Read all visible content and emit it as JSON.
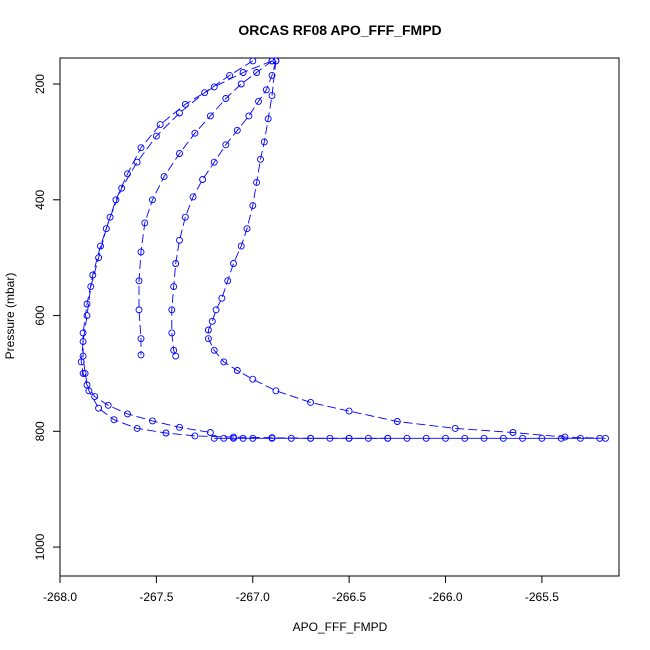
{
  "chart_data": {
    "type": "scatter",
    "title": "ORCAS RF08 APO_FFF_FMPD",
    "xlabel": "APO_FFF_FMPD",
    "ylabel": "Pressure (mbar)",
    "xlim": [
      -268.0,
      -265.1
    ],
    "ylim": [
      1050,
      155
    ],
    "x_ticks": [
      -268.0,
      -267.5,
      -267.0,
      -266.5,
      -266.0,
      -265.5
    ],
    "x_tick_labels": [
      "-268.0",
      "-267.5",
      "-267.0",
      "-266.5",
      "-266.0",
      "-265.5"
    ],
    "y_ticks": [
      200,
      400,
      600,
      800,
      1000
    ],
    "y_tick_labels": [
      "200",
      "400",
      "600",
      "800",
      "1000"
    ],
    "marker": "open-circle",
    "grid": false,
    "color": "#0000ff",
    "series": [
      {
        "x": [
          -266.88,
          -266.9,
          -266.92,
          -266.94,
          -266.96,
          -266.98,
          -267.0,
          -267.03,
          -267.06,
          -267.1,
          -267.13,
          -267.16,
          -267.19,
          -267.21,
          -267.23,
          -267.23,
          -267.2,
          -267.15,
          -267.08,
          -267.0,
          -266.88,
          -266.7,
          -266.5,
          -266.25,
          -265.95,
          -265.65,
          -265.38,
          -265.17
        ],
        "y": [
          160,
          220,
          260,
          300,
          330,
          370,
          410,
          450,
          480,
          510,
          540,
          570,
          590,
          610,
          625,
          640,
          660,
          680,
          695,
          710,
          730,
          750,
          765,
          783,
          795,
          802,
          810,
          812
        ]
      },
      {
        "x": [
          -266.88,
          -266.9,
          -266.93,
          -266.97,
          -267.02,
          -267.08,
          -267.14,
          -267.2,
          -267.26,
          -267.31,
          -267.35,
          -267.38,
          -267.4,
          -267.41,
          -267.42,
          -267.42,
          -267.41,
          -267.4
        ],
        "y": [
          160,
          185,
          210,
          230,
          255,
          280,
          305,
          335,
          365,
          395,
          430,
          470,
          510,
          550,
          590,
          630,
          660,
          670
        ]
      },
      {
        "x": [
          -266.9,
          -266.98,
          -267.06,
          -267.14,
          -267.22,
          -267.3,
          -267.38,
          -267.46,
          -267.52,
          -267.56,
          -267.58,
          -267.59,
          -267.59,
          -267.58,
          -267.58
        ],
        "y": [
          160,
          180,
          200,
          225,
          255,
          285,
          320,
          360,
          400,
          440,
          490,
          540,
          590,
          640,
          668
        ]
      },
      {
        "x": [
          -267.0,
          -267.12,
          -267.25,
          -267.38,
          -267.5,
          -267.6,
          -267.68,
          -267.74,
          -267.79,
          -267.83,
          -267.86,
          -267.88,
          -267.88,
          -267.87,
          -267.85,
          -267.8,
          -267.72,
          -267.6,
          -267.45,
          -267.3,
          -267.1,
          -266.9,
          -266.7,
          -266.5,
          -266.3
        ],
        "y": [
          160,
          185,
          215,
          250,
          290,
          335,
          380,
          430,
          480,
          530,
          580,
          630,
          670,
          700,
          730,
          760,
          780,
          795,
          803,
          808,
          810,
          811,
          812,
          812,
          812
        ]
      },
      {
        "x": [
          -266.9,
          -267.05,
          -267.2,
          -267.35,
          -267.48,
          -267.58,
          -267.65,
          -267.71,
          -267.76,
          -267.8,
          -267.84,
          -267.86,
          -267.88,
          -267.89,
          -267.88,
          -267.86,
          -267.82,
          -267.75,
          -267.65,
          -267.52,
          -267.38,
          -267.22
        ],
        "y": [
          160,
          180,
          205,
          235,
          270,
          310,
          355,
          400,
          450,
          500,
          550,
          600,
          645,
          680,
          700,
          720,
          740,
          755,
          770,
          782,
          793,
          802
        ]
      },
      {
        "x": [
          -267.2,
          -267.15,
          -267.1,
          -267.05,
          -267.0,
          -266.9,
          -266.8,
          -266.7,
          -266.6,
          -266.5,
          -266.4,
          -266.3,
          -266.2,
          -266.1,
          -266.0,
          -265.9,
          -265.8,
          -265.7,
          -265.6,
          -265.5,
          -265.4,
          -265.3,
          -265.2
        ],
        "y": [
          812,
          812,
          812,
          812,
          812,
          812,
          812,
          812,
          812,
          812,
          812,
          812,
          812,
          812,
          812,
          812,
          812,
          812,
          812,
          812,
          812,
          812,
          812
        ]
      }
    ]
  }
}
